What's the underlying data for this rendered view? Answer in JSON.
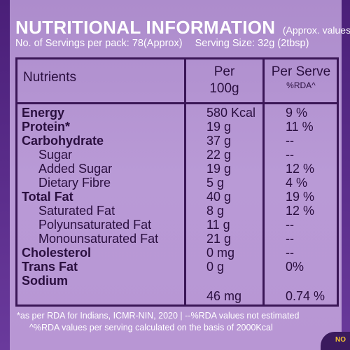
{
  "header": {
    "title": "NUTRITIONAL INFORMATION",
    "title_note": "(Approx. values)",
    "servings_per_pack": "No. of Servings per pack: 78(Approx)",
    "serving_size": "Serving Size: 32g (2tbsp)"
  },
  "table": {
    "col_nutrients": "Nutrients",
    "col_per_line1": "Per",
    "col_per_line2": "100g",
    "col_serve": "Per Serve",
    "col_serve_sub": "%RDA^",
    "rows": [
      {
        "name": "Energy",
        "per100g": "580 Kcal",
        "rda": "9 %"
      },
      {
        "name": "Protein*",
        "per100g": "19 g",
        "rda": "11 %"
      },
      {
        "name": "Carbohydrate",
        "per100g": "37 g",
        "rda": "--"
      },
      {
        "name": "Sugar",
        "per100g": "22 g",
        "rda": "--"
      },
      {
        "name": "Added Sugar",
        "per100g": "19 g",
        "rda": "12 %"
      },
      {
        "name": "Dietary Fibre",
        "per100g": "5 g",
        "rda": "4 %"
      },
      {
        "name": "Total Fat",
        "per100g": "40 g",
        "rda": "19 %"
      },
      {
        "name": "Saturated Fat",
        "per100g": "8 g",
        "rda": "12 %"
      },
      {
        "name": "Polyunsaturated Fat",
        "per100g": "11 g",
        "rda": "--"
      },
      {
        "name": "Monounsaturated Fat",
        "per100g": "21 g",
        "rda": "--"
      },
      {
        "name": "Cholesterol",
        "per100g": "0 mg",
        "rda": "--"
      },
      {
        "name": "Trans Fat",
        "per100g": "0 g",
        "rda": "0%"
      },
      {
        "name": "Sodium",
        "per100g": "46 mg",
        "rda": "0.74 %"
      }
    ]
  },
  "footnotes": {
    "line1": "*as per RDA for Indians, ICMR-NIN, 2020  |  --%RDA values not estimated",
    "line2": "^%RDA values per serving calculated on the basis of 2000Kcal"
  },
  "corner_text": "NO",
  "colors": {
    "panel": "#b99ad6",
    "frame": "#5a2d8a",
    "text_dark": "#2a0f3f",
    "lines": "#3a1656"
  }
}
